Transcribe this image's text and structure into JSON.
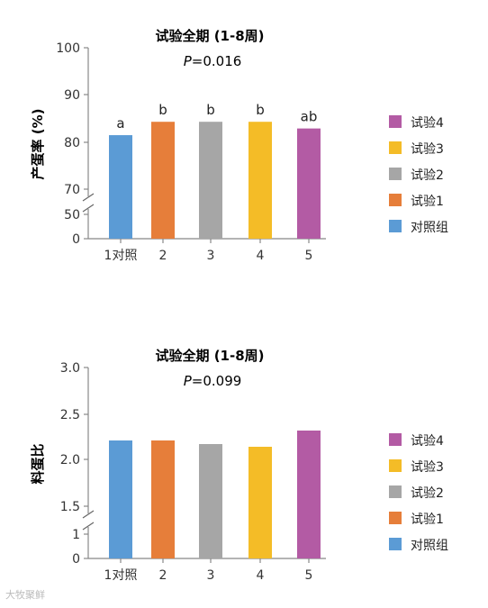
{
  "chart_data": [
    {
      "type": "bar",
      "title": "试验全期 (1-8周)",
      "p_prefix": "P",
      "p_suffix": "=0.016",
      "ylabel": "产蛋率 (%)",
      "categories": [
        "1对照",
        "2",
        "3",
        "4",
        "5"
      ],
      "values": [
        81.5,
        84.3,
        84.3,
        84.3,
        82.9
      ],
      "significance": [
        "a",
        "b",
        "b",
        "b",
        "ab"
      ],
      "yticks": [
        0,
        50,
        70,
        80,
        90,
        100
      ],
      "ylim": [
        0,
        100
      ],
      "axis_break": [
        50,
        70
      ],
      "colors": [
        "#5B9BD5",
        "#E67E3A",
        "#A6A6A6",
        "#F4BC27",
        "#B35BA4"
      ],
      "legend": [
        {
          "label": "试验4",
          "color": "#B35BA4"
        },
        {
          "label": "试验3",
          "color": "#F4BC27"
        },
        {
          "label": "试验2",
          "color": "#A6A6A6"
        },
        {
          "label": "试验1",
          "color": "#E67E3A"
        },
        {
          "label": "对照组",
          "color": "#5B9BD5"
        }
      ],
      "legend_position": "right",
      "grid": false
    },
    {
      "type": "bar",
      "title": "试验全期 (1-8周)",
      "p_prefix": "P",
      "p_suffix": "=0.099",
      "ylabel": "料蛋比",
      "categories": [
        "1对照",
        "2",
        "3",
        "4",
        "5"
      ],
      "values": [
        2.21,
        2.21,
        2.17,
        2.14,
        2.32
      ],
      "significance": [],
      "yticks": [
        0,
        1,
        1.5,
        2.0,
        2.5,
        3.0
      ],
      "yticklabels": [
        "0",
        "1",
        "1.5",
        "2.0",
        "2.5",
        "3.0"
      ],
      "ylim": [
        0,
        3.0
      ],
      "axis_break": [
        1,
        1.5
      ],
      "colors": [
        "#5B9BD5",
        "#E67E3A",
        "#A6A6A6",
        "#F4BC27",
        "#B35BA4"
      ],
      "legend": [
        {
          "label": "试验4",
          "color": "#B35BA4"
        },
        {
          "label": "试验3",
          "color": "#F4BC27"
        },
        {
          "label": "试验2",
          "color": "#A6A6A6"
        },
        {
          "label": "试验1",
          "color": "#E67E3A"
        },
        {
          "label": "对照组",
          "color": "#5B9BD5"
        }
      ],
      "legend_position": "right",
      "grid": false
    }
  ],
  "watermark": "大牧聚鲜"
}
